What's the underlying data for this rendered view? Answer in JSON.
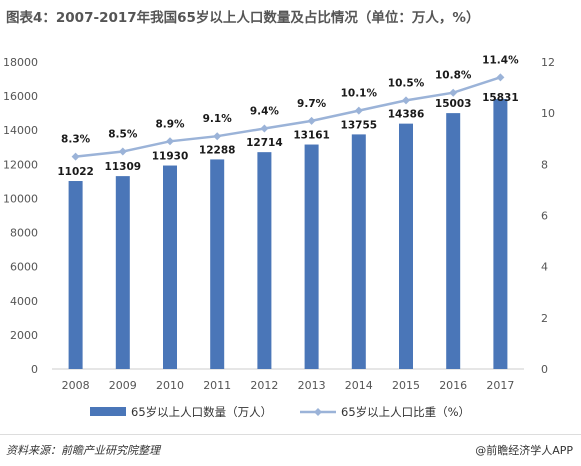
{
  "title": "图表4：2007-2017年我国65岁以上人口数量及占比情况（单位：万人，%）",
  "footer": {
    "source": "资料来源：前瞻产业研究院整理",
    "brand": "@前瞻经济学人APP"
  },
  "colors": {
    "bar": "#4a76b8",
    "line": "#9bb3d8",
    "marker": "#9bb3d8"
  },
  "chart_data": {
    "type": "bar",
    "title": "图表4：2007-2017年我国65岁以上人口数量及占比情况（单位：万人，%）",
    "categories": [
      "2008",
      "2009",
      "2010",
      "2011",
      "2012",
      "2013",
      "2014",
      "2015",
      "2016",
      "2017"
    ],
    "series": [
      {
        "name": "65岁以上人口数量（万人）",
        "type": "bar",
        "axis": "left",
        "values": [
          11022,
          11309,
          11930,
          12288,
          12714,
          13161,
          13755,
          14386,
          15003,
          15831
        ],
        "labels": [
          "11022",
          "11309",
          "11930",
          "12288",
          "12714",
          "13161",
          "13755",
          "14386",
          "15003",
          "15831"
        ]
      },
      {
        "name": "65岁以上人口比重（%）",
        "type": "line",
        "axis": "right",
        "values": [
          8.3,
          8.5,
          8.9,
          9.1,
          9.4,
          9.7,
          10.1,
          10.5,
          10.8,
          11.4
        ],
        "labels": [
          "8.3%",
          "8.5%",
          "8.9%",
          "9.1%",
          "9.4%",
          "9.7%",
          "10.1%",
          "10.5%",
          "10.8%",
          "11.4%"
        ]
      }
    ],
    "ylim": [
      0,
      18000
    ],
    "yticks": [
      "0",
      "2000",
      "4000",
      "6000",
      "8000",
      "10000",
      "12000",
      "14000",
      "16000",
      "18000"
    ],
    "y2lim": [
      0,
      12
    ],
    "y2ticks": [
      "0",
      "2",
      "4",
      "6",
      "8",
      "10",
      "12"
    ],
    "grid": false,
    "legend": "bottom"
  }
}
